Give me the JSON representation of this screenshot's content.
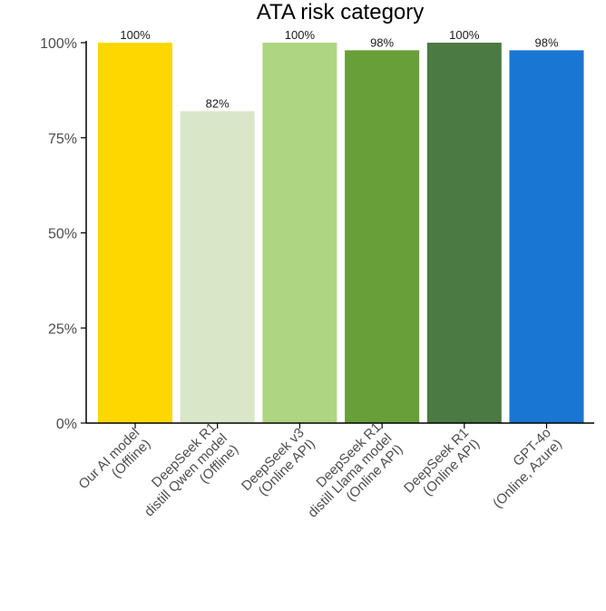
{
  "chart_data": {
    "type": "bar",
    "title": "ATA risk category",
    "xlabel": "",
    "ylabel": "",
    "ylim": [
      0,
      100
    ],
    "yticks": [
      "0%",
      "25%",
      "50%",
      "75%",
      "100%"
    ],
    "categories": [
      [
        "Our AI model",
        "(Offline)"
      ],
      [
        "DeepSeek R1",
        "distill Qwen model",
        "(Offline)"
      ],
      [
        "DeepSeek v3",
        "(Online API)"
      ],
      [
        "DeepSeek R1",
        "distill Llama model",
        "(Online API)"
      ],
      [
        "DeepSeek R1",
        "(Online API)"
      ],
      [
        "GPT-4o",
        "(Online, Azure)"
      ]
    ],
    "values": [
      100,
      82,
      100,
      98,
      100,
      98
    ],
    "data_labels": [
      "100%",
      "82%",
      "100%",
      "98%",
      "100%",
      "98%"
    ],
    "colors": [
      "#FFD700",
      "#D9E7C9",
      "#AED581",
      "#689F38",
      "#4B7A42",
      "#1976D2"
    ],
    "grid": false,
    "legend": "none"
  }
}
